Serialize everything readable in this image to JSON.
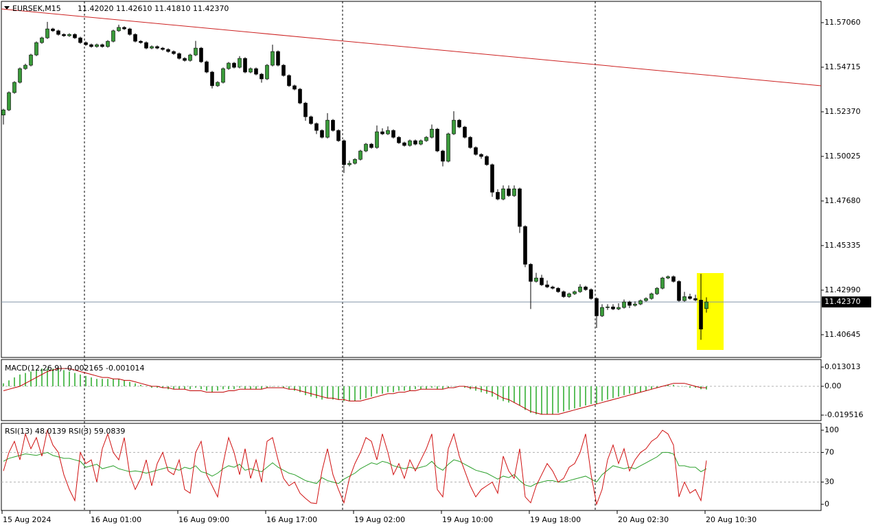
{
  "chart_data": [
    {
      "type": "candlestick",
      "title": "EURSEK,M15",
      "subtitle": "11.42020 11.42610 11.41810 11.42370",
      "up_color": "#3a9a3a",
      "down_color": "#000000",
      "wick_color": "#000000",
      "ylim": [
        11.3945,
        11.5825
      ],
      "yticks": [
        {
          "value": 11.5706,
          "label": "11.57060"
        },
        {
          "value": 11.54715,
          "label": "11.54715"
        },
        {
          "value": 11.5237,
          "label": "11.52370"
        },
        {
          "value": 11.50025,
          "label": "11.50025"
        },
        {
          "value": 11.4768,
          "label": "11.47680"
        },
        {
          "value": 11.45335,
          "label": "11.45335"
        },
        {
          "value": 11.4299,
          "label": "11.42990"
        },
        {
          "value": 11.40645,
          "label": "11.40645"
        }
      ],
      "current_price": {
        "value": 11.4237,
        "label": "11.42370"
      },
      "trendline": {
        "values": [
          11.5778,
          11.5374
        ],
        "color": "#cc2020"
      },
      "x_labels": [
        "15 Aug 2024",
        "16 Aug 01:00",
        "16 Aug 09:00",
        "16 Aug 17:00",
        "19 Aug 02:00",
        "19 Aug 10:00",
        "19 Aug 18:00",
        "20 Aug 02:30",
        "20 Aug 10:30"
      ],
      "open": [
        11.522,
        11.5247,
        11.5338,
        11.5392,
        11.5464,
        11.5482,
        11.5536,
        11.5601,
        11.5626,
        11.5673,
        11.5663,
        11.5644,
        11.5637,
        11.5644,
        11.5626,
        11.5601,
        11.559,
        11.558,
        11.559,
        11.558,
        11.5608,
        11.5663,
        11.5681,
        11.5673,
        11.5644,
        11.5608,
        11.5601,
        11.5572,
        11.558,
        11.5572,
        11.5565,
        11.5554,
        11.5543,
        11.5518,
        11.5507,
        11.5536,
        11.5572,
        11.55,
        11.5446,
        11.5374,
        11.5392,
        11.5464,
        11.5493,
        11.5471,
        11.5518,
        11.5446,
        11.5464,
        11.5435,
        11.541,
        11.5482,
        11.5554,
        11.5482,
        11.5428,
        11.5374,
        11.5356,
        11.5283,
        11.5211,
        11.5175,
        11.5139,
        11.5103,
        11.5193,
        11.5139,
        11.5085,
        11.4959,
        11.4966,
        11.4987,
        11.5031,
        11.5067,
        11.5049,
        11.5132,
        11.5121,
        11.5139,
        11.5103,
        11.5074,
        11.506,
        11.5085,
        11.5067,
        11.5085,
        11.5103,
        11.5146,
        11.5031,
        11.4977,
        11.5121,
        11.5193,
        11.5157,
        11.5103,
        11.5049,
        11.5013,
        11.5002,
        11.4959,
        11.4814,
        11.4778,
        11.4832,
        11.4796,
        11.4832,
        11.4634,
        11.4435,
        11.4345,
        11.4363,
        11.4327,
        11.4316,
        11.4309,
        11.4291,
        11.4265,
        11.428,
        11.4291,
        11.4316,
        11.4302,
        11.4255,
        11.4164,
        11.4208,
        11.4211,
        11.42,
        11.4208,
        11.4237,
        11.4219,
        11.4226,
        11.4244,
        11.4255,
        11.428,
        11.4309,
        11.4363,
        11.437,
        11.4345,
        11.4244,
        11.4265,
        11.4255,
        11.4247,
        11.4202
      ],
      "high": [
        11.5253,
        11.5344,
        11.5398,
        11.547,
        11.549,
        11.5542,
        11.5607,
        11.5632,
        11.571,
        11.5679,
        11.5669,
        11.565,
        11.565,
        11.565,
        11.5632,
        11.5607,
        11.5596,
        11.5596,
        11.5596,
        11.5614,
        11.5669,
        11.5695,
        11.5687,
        11.5679,
        11.565,
        11.5614,
        11.5607,
        11.5586,
        11.5586,
        11.5578,
        11.5571,
        11.556,
        11.5549,
        11.5524,
        11.5542,
        11.561,
        11.5578,
        11.5506,
        11.5452,
        11.5398,
        11.547,
        11.5499,
        11.5499,
        11.553,
        11.5524,
        11.547,
        11.547,
        11.5441,
        11.5488,
        11.559,
        11.556,
        11.5488,
        11.5434,
        11.538,
        11.5362,
        11.5289,
        11.5217,
        11.5181,
        11.5145,
        11.523,
        11.5199,
        11.5145,
        11.5091,
        11.498,
        11.4993,
        11.5037,
        11.5073,
        11.5073,
        11.5165,
        11.515,
        11.516,
        11.5145,
        11.5109,
        11.508,
        11.5091,
        11.5091,
        11.5091,
        11.5109,
        11.517,
        11.5152,
        11.5037,
        11.5127,
        11.524,
        11.5199,
        11.5163,
        11.5109,
        11.5055,
        11.5019,
        11.5008,
        11.4965,
        11.483,
        11.485,
        11.485,
        11.485,
        11.4838,
        11.464,
        11.4441,
        11.439,
        11.438,
        11.435,
        11.4322,
        11.4315,
        11.4297,
        11.4286,
        11.4297,
        11.433,
        11.4322,
        11.4308,
        11.4261,
        11.4225,
        11.4225,
        11.4225,
        11.423,
        11.425,
        11.4243,
        11.424,
        11.425,
        11.4261,
        11.4286,
        11.4315,
        11.4369,
        11.4376,
        11.4376,
        11.4351,
        11.429,
        11.428,
        11.4275,
        11.4385,
        11.4261
      ],
      "low": [
        11.517,
        11.5241,
        11.5332,
        11.5386,
        11.5458,
        11.5476,
        11.553,
        11.5595,
        11.562,
        11.5657,
        11.5638,
        11.5631,
        11.5631,
        11.562,
        11.5595,
        11.5584,
        11.5574,
        11.5574,
        11.5574,
        11.5574,
        11.5602,
        11.5657,
        11.5667,
        11.5638,
        11.5602,
        11.5595,
        11.5566,
        11.5566,
        11.5566,
        11.5559,
        11.5548,
        11.5537,
        11.5512,
        11.5501,
        11.5501,
        11.553,
        11.5494,
        11.544,
        11.536,
        11.5368,
        11.5386,
        11.5458,
        11.5465,
        11.5465,
        11.544,
        11.544,
        11.5429,
        11.539,
        11.5404,
        11.5476,
        11.5476,
        11.5422,
        11.5368,
        11.535,
        11.5277,
        11.519,
        11.5169,
        11.512,
        11.5097,
        11.5097,
        11.5133,
        11.5079,
        11.4915,
        11.495,
        11.496,
        11.4981,
        11.5025,
        11.5043,
        11.5043,
        11.5115,
        11.5115,
        11.5097,
        11.5068,
        11.5054,
        11.5054,
        11.5061,
        11.5061,
        11.5079,
        11.5097,
        11.5025,
        11.495,
        11.4971,
        11.5115,
        11.5151,
        11.5097,
        11.5043,
        11.5007,
        11.499,
        11.4953,
        11.479,
        11.4772,
        11.4772,
        11.479,
        11.479,
        11.46,
        11.442,
        11.42,
        11.4339,
        11.4321,
        11.431,
        11.4303,
        11.4285,
        11.4259,
        11.4259,
        11.4274,
        11.4285,
        11.4296,
        11.4249,
        11.41,
        11.4158,
        11.4195,
        11.4194,
        11.4194,
        11.4202,
        11.4205,
        11.4213,
        11.422,
        11.4238,
        11.4249,
        11.4274,
        11.4303,
        11.4357,
        11.4339,
        11.4238,
        11.4238,
        11.4249,
        11.4241,
        11.4038,
        11.4181
      ],
      "close": [
        11.5247,
        11.5338,
        11.5392,
        11.5464,
        11.5482,
        11.5536,
        11.5601,
        11.5626,
        11.5673,
        11.5663,
        11.5644,
        11.5637,
        11.5644,
        11.5626,
        11.5601,
        11.559,
        11.558,
        11.559,
        11.558,
        11.5608,
        11.5663,
        11.5681,
        11.5673,
        11.5644,
        11.5608,
        11.5601,
        11.5572,
        11.558,
        11.5572,
        11.5565,
        11.5554,
        11.5543,
        11.5518,
        11.5507,
        11.5536,
        11.5572,
        11.55,
        11.5446,
        11.5374,
        11.5392,
        11.5464,
        11.5493,
        11.5471,
        11.5518,
        11.5446,
        11.5464,
        11.5435,
        11.541,
        11.5482,
        11.5554,
        11.5482,
        11.5428,
        11.5374,
        11.5356,
        11.5283,
        11.5211,
        11.5175,
        11.5139,
        11.5103,
        11.5193,
        11.5139,
        11.5085,
        11.4959,
        11.4966,
        11.4987,
        11.5031,
        11.5067,
        11.5049,
        11.5132,
        11.5121,
        11.5139,
        11.5103,
        11.5074,
        11.506,
        11.5085,
        11.5067,
        11.5085,
        11.5103,
        11.5146,
        11.5031,
        11.4977,
        11.5121,
        11.5193,
        11.5157,
        11.5103,
        11.5049,
        11.5013,
        11.5002,
        11.4959,
        11.4814,
        11.4778,
        11.4832,
        11.4796,
        11.4832,
        11.4634,
        11.4435,
        11.4345,
        11.4363,
        11.4327,
        11.4316,
        11.4309,
        11.4291,
        11.4265,
        11.428,
        11.4291,
        11.4316,
        11.4302,
        11.4255,
        11.4164,
        11.4208,
        11.4211,
        11.42,
        11.4208,
        11.4237,
        11.4219,
        11.4226,
        11.4244,
        11.4255,
        11.428,
        11.4309,
        11.4363,
        11.437,
        11.4345,
        11.4244,
        11.4265,
        11.4255,
        11.4247,
        11.4094,
        11.4237
      ]
    },
    {
      "type": "macd",
      "title": "MACD(12,26,9) -0.002165 -0.001014",
      "color": "#5cbf5c",
      "signal_color": "#c00000",
      "ylim": [
        -0.02323,
        0.01812
      ],
      "yticks": [
        0.013013,
        {
          "value": 0,
          "label": "0.00"
        },
        -0.019516
      ],
      "levels": [
        0
      ],
      "values": [
        0.002,
        0.004,
        0.006,
        0.008,
        0.009,
        0.01,
        0.011,
        0.012,
        0.012,
        0.012,
        0.012,
        0.011,
        0.01,
        0.009,
        0.008,
        0.007,
        0.006,
        0.005,
        0.005,
        0.005,
        0.005,
        0.005,
        0.004,
        0.003,
        0.002,
        0.001,
        0.0,
        -0.001,
        -0.001,
        -0.001,
        -0.002,
        -0.002,
        -0.002,
        -0.002,
        -0.002,
        -0.001,
        -0.002,
        -0.003,
        -0.004,
        -0.003,
        -0.002,
        -0.002,
        -0.002,
        -0.001,
        -0.002,
        -0.002,
        -0.002,
        -0.002,
        -0.001,
        0.0,
        0.0,
        -0.001,
        -0.002,
        -0.003,
        -0.004,
        -0.006,
        -0.007,
        -0.008,
        -0.009,
        -0.008,
        -0.009,
        -0.009,
        -0.01,
        -0.01,
        -0.01,
        -0.009,
        -0.008,
        -0.007,
        -0.005,
        -0.005,
        -0.004,
        -0.004,
        -0.003,
        -0.003,
        -0.003,
        -0.002,
        -0.002,
        -0.002,
        -0.001,
        -0.002,
        -0.002,
        -0.001,
        0.0,
        0.0,
        -0.001,
        -0.002,
        -0.003,
        -0.004,
        -0.005,
        -0.007,
        -0.009,
        -0.01,
        -0.011,
        -0.011,
        -0.013,
        -0.016,
        -0.018,
        -0.019,
        -0.019,
        -0.019,
        -0.019,
        -0.018,
        -0.017,
        -0.016,
        -0.015,
        -0.014,
        -0.013,
        -0.012,
        -0.012,
        -0.01,
        -0.009,
        -0.008,
        -0.007,
        -0.006,
        -0.005,
        -0.005,
        -0.004,
        -0.003,
        -0.002,
        -0.001,
        0.0,
        0.001,
        0.001,
        0.0,
        0.0,
        -0.001,
        -0.001,
        -0.002,
        -0.002165
      ],
      "signal": [
        -0.003,
        -0.002,
        -0.001,
        0.0,
        0.002,
        0.004,
        0.006,
        0.008,
        0.01,
        0.011,
        0.012,
        0.012,
        0.012,
        0.011,
        0.01,
        0.009,
        0.008,
        0.007,
        0.006,
        0.006,
        0.005,
        0.005,
        0.004,
        0.004,
        0.003,
        0.002,
        0.001,
        0.0,
        0.0,
        -0.001,
        -0.001,
        -0.002,
        -0.002,
        -0.002,
        -0.003,
        -0.003,
        -0.003,
        -0.004,
        -0.004,
        -0.004,
        -0.004,
        -0.003,
        -0.003,
        -0.002,
        -0.002,
        -0.002,
        -0.002,
        -0.002,
        -0.001,
        -0.001,
        -0.001,
        -0.001,
        -0.002,
        -0.002,
        -0.003,
        -0.004,
        -0.005,
        -0.006,
        -0.007,
        -0.008,
        -0.008,
        -0.009,
        -0.009,
        -0.01,
        -0.01,
        -0.01,
        -0.009,
        -0.008,
        -0.007,
        -0.006,
        -0.005,
        -0.005,
        -0.004,
        -0.004,
        -0.003,
        -0.003,
        -0.002,
        -0.002,
        -0.002,
        -0.002,
        -0.002,
        -0.001,
        -0.001,
        0.0,
        0.0,
        -0.001,
        -0.001,
        -0.002,
        -0.003,
        -0.004,
        -0.006,
        -0.008,
        -0.009,
        -0.011,
        -0.013,
        -0.015,
        -0.017,
        -0.018,
        -0.019,
        -0.019,
        -0.019,
        -0.019,
        -0.018,
        -0.017,
        -0.016,
        -0.015,
        -0.014,
        -0.013,
        -0.012,
        -0.011,
        -0.01,
        -0.009,
        -0.008,
        -0.007,
        -0.006,
        -0.005,
        -0.004,
        -0.003,
        -0.002,
        -0.001,
        0.0,
        0.001,
        0.002,
        0.002,
        0.002,
        0.001,
        0.0,
        -0.001,
        -0.001014
      ]
    },
    {
      "type": "line",
      "title": "RSI(13) 48.0139  RSI(3) 59.0839",
      "ylim": [
        -8.33,
        109.26
      ],
      "yticks": [
        100,
        70,
        30,
        0
      ],
      "levels": [
        70,
        30
      ],
      "series": [
        {
          "color": "#2ca02c",
          "values": [
            58,
            62,
            64,
            66,
            68,
            67,
            66,
            68,
            70,
            66,
            64,
            62,
            62,
            60,
            58,
            50,
            52,
            54,
            48,
            50,
            52,
            48,
            46,
            44,
            45,
            44,
            42,
            44,
            46,
            48,
            50,
            48,
            46,
            50,
            48,
            52,
            44,
            42,
            38,
            42,
            48,
            52,
            50,
            54,
            46,
            48,
            46,
            44,
            50,
            56,
            50,
            46,
            42,
            40,
            36,
            32,
            30,
            28,
            36,
            32,
            30,
            28,
            34,
            38,
            42,
            48,
            52,
            56,
            54,
            58,
            56,
            52,
            50,
            48,
            50,
            48,
            50,
            52,
            58,
            50,
            46,
            54,
            60,
            58,
            54,
            50,
            46,
            44,
            42,
            38,
            34,
            38,
            36,
            40,
            32,
            26,
            24,
            28,
            30,
            32,
            32,
            30,
            30,
            32,
            34,
            36,
            38,
            34,
            30,
            40,
            46,
            52,
            50,
            48,
            50,
            48,
            52,
            56,
            60,
            64,
            70,
            70,
            68,
            52,
            52,
            50,
            50,
            44,
            48.0139
          ]
        },
        {
          "color": "#d01010",
          "values": [
            45,
            70,
            85,
            60,
            95,
            75,
            90,
            65,
            100,
            80,
            70,
            40,
            20,
            5,
            70,
            55,
            60,
            30,
            75,
            95,
            70,
            60,
            90,
            40,
            20,
            35,
            60,
            25,
            55,
            70,
            45,
            40,
            60,
            20,
            15,
            70,
            85,
            40,
            25,
            10,
            55,
            90,
            70,
            40,
            75,
            35,
            60,
            30,
            85,
            90,
            60,
            35,
            25,
            30,
            15,
            8,
            2,
            1,
            45,
            75,
            40,
            20,
            2,
            35,
            55,
            70,
            90,
            85,
            60,
            95,
            70,
            40,
            55,
            35,
            60,
            45,
            60,
            75,
            95,
            20,
            10,
            75,
            95,
            65,
            45,
            25,
            10,
            20,
            25,
            30,
            15,
            65,
            45,
            35,
            75,
            10,
            2,
            25,
            40,
            55,
            45,
            30,
            35,
            50,
            55,
            70,
            95,
            40,
            0,
            20,
            60,
            80,
            55,
            75,
            45,
            60,
            70,
            75,
            85,
            90,
            100,
            95,
            80,
            10,
            30,
            15,
            20,
            5,
            59.0839
          ]
        }
      ]
    }
  ]
}
